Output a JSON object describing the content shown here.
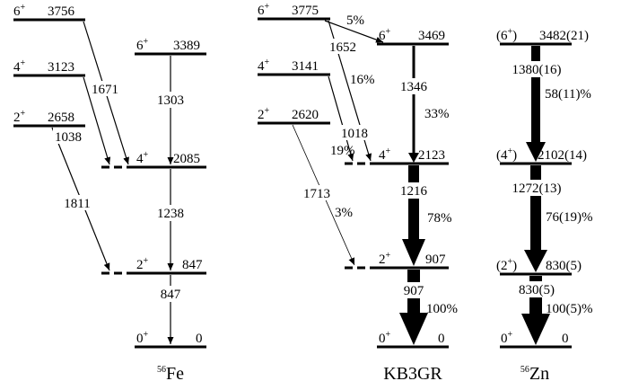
{
  "colors": {
    "ink": "#000000",
    "background": "#ffffff"
  },
  "panels": [
    {
      "id": "fe56",
      "caption": {
        "mass": "56",
        "symbol": "Fe"
      },
      "levels": [
        {
          "id": "fe-6-3756",
          "spin": "6",
          "parity": "+",
          "energy": "3756",
          "group": "side"
        },
        {
          "id": "fe-4-3123",
          "spin": "4",
          "parity": "+",
          "energy": "3123",
          "group": "side"
        },
        {
          "id": "fe-2-2658",
          "spin": "2",
          "parity": "+",
          "energy": "2658",
          "group": "side"
        },
        {
          "id": "fe-6-3389",
          "spin": "6",
          "parity": "+",
          "energy": "3389",
          "group": "main"
        },
        {
          "id": "fe-4-2085",
          "spin": "4",
          "parity": "+",
          "energy": "2085",
          "group": "main"
        },
        {
          "id": "fe-2-847",
          "spin": "2",
          "parity": "+",
          "energy": "847",
          "group": "main"
        },
        {
          "id": "fe-0-0",
          "spin": "0",
          "parity": "+",
          "energy": "0",
          "group": "main"
        }
      ],
      "transitions": [
        {
          "from": "fe-6-3389",
          "to": "fe-4-2085",
          "energy": "1303",
          "intensity": ""
        },
        {
          "from": "fe-4-2085",
          "to": "fe-2-847",
          "energy": "1238",
          "intensity": ""
        },
        {
          "from": "fe-2-847",
          "to": "fe-0-0",
          "energy": "847",
          "intensity": ""
        },
        {
          "from": "fe-6-3756",
          "to": "fe-4-2085",
          "energy": "1671",
          "intensity": ""
        },
        {
          "from": "fe-4-3123",
          "to": "fe-4-2085",
          "energy": "1038",
          "intensity": ""
        },
        {
          "from": "fe-2-2658",
          "to": "fe-2-847",
          "energy": "1811",
          "intensity": ""
        }
      ]
    },
    {
      "id": "kb3gr",
      "caption": {
        "mass": "",
        "symbol": "KB3GR"
      },
      "levels": [
        {
          "id": "kb-6-3775",
          "spin": "6",
          "parity": "+",
          "energy": "3775",
          "group": "side"
        },
        {
          "id": "kb-4-3141",
          "spin": "4",
          "parity": "+",
          "energy": "3141",
          "group": "side"
        },
        {
          "id": "kb-2-2620",
          "spin": "2",
          "parity": "+",
          "energy": "2620",
          "group": "side"
        },
        {
          "id": "kb-6-3469",
          "spin": "6",
          "parity": "+",
          "energy": "3469",
          "group": "main"
        },
        {
          "id": "kb-4-2123",
          "spin": "4",
          "parity": "+",
          "energy": "2123",
          "group": "main"
        },
        {
          "id": "kb-2-907",
          "spin": "2",
          "parity": "+",
          "energy": "907",
          "group": "main"
        },
        {
          "id": "kb-0-0",
          "spin": "0",
          "parity": "+",
          "energy": "0",
          "group": "main"
        }
      ],
      "transitions": [
        {
          "from": "kb-6-3775",
          "to": "kb-6-3469",
          "energy": "",
          "intensity": "5%"
        },
        {
          "from": "kb-6-3775",
          "to": "kb-4-2123",
          "energy": "1652",
          "intensity": "16%"
        },
        {
          "from": "kb-4-3141",
          "to": "kb-4-2123",
          "energy": "1018",
          "intensity": "19%"
        },
        {
          "from": "kb-2-2620",
          "to": "kb-2-907",
          "energy": "1713",
          "intensity": "3%"
        },
        {
          "from": "kb-6-3469",
          "to": "kb-4-2123",
          "energy": "1346",
          "intensity": "33%"
        },
        {
          "from": "kb-4-2123",
          "to": "kb-2-907",
          "energy": "1216",
          "intensity": "78%"
        },
        {
          "from": "kb-2-907",
          "to": "kb-0-0",
          "energy": "907",
          "intensity": "100%"
        }
      ]
    },
    {
      "id": "zn56",
      "caption": {
        "mass": "56",
        "symbol": "Zn"
      },
      "levels": [
        {
          "id": "zn-6-3482",
          "spin": "(6",
          "parity": "+",
          "energy": "3482(21)",
          "close": ")"
        },
        {
          "id": "zn-4-2102",
          "spin": "(4",
          "parity": "+",
          "energy": "2102(14)",
          "close": ")"
        },
        {
          "id": "zn-2-830",
          "spin": "(2",
          "parity": "+",
          "energy": "830(5)",
          "close": ")"
        },
        {
          "id": "zn-0-0",
          "spin": "0",
          "parity": "+",
          "energy": "0",
          "close": ""
        }
      ],
      "transitions": [
        {
          "from": "zn-6-3482",
          "to": "zn-4-2102",
          "energy": "1380(16)",
          "intensity": "58(11)%"
        },
        {
          "from": "zn-4-2102",
          "to": "zn-2-830",
          "energy": "1272(13)",
          "intensity": "76(19)%"
        },
        {
          "from": "zn-2-830",
          "to": "zn-0-0",
          "energy": "830(5)",
          "intensity": "100(5)%"
        }
      ]
    }
  ]
}
